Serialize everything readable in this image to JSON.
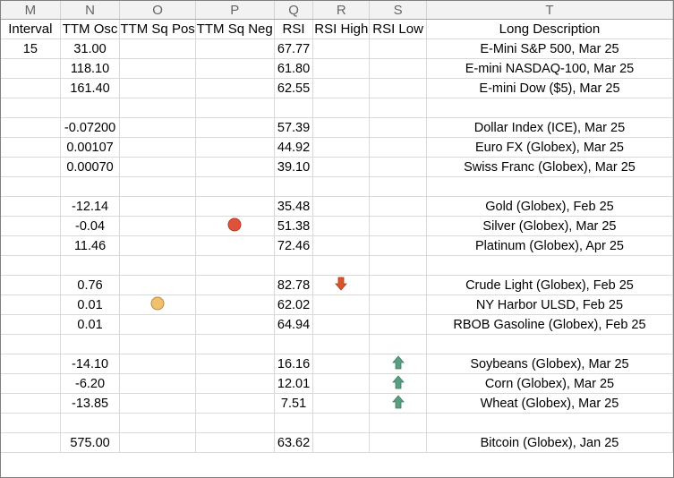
{
  "columns": [
    "M",
    "N",
    "O",
    "P",
    "Q",
    "R",
    "S",
    "T"
  ],
  "headers": [
    "Interval",
    "TTM Osc",
    "TTM Sq Pos",
    "TTM Sq Neg",
    "RSI",
    "RSI High",
    "RSI Low",
    "Long Description"
  ],
  "rows": [
    {
      "interval": "15",
      "ttm_osc": "31.00",
      "rsi": "67.77",
      "desc": "E-Mini S&P 500, Mar 25"
    },
    {
      "interval": "",
      "ttm_osc": "118.10",
      "rsi": "61.80",
      "desc": "E-mini NASDAQ-100, Mar 25"
    },
    {
      "interval": "",
      "ttm_osc": "161.40",
      "rsi": "62.55",
      "desc": "E-mini Dow ($5), Mar 25"
    },
    {
      "blank": true
    },
    {
      "interval": "",
      "ttm_osc": "-0.07200",
      "rsi": "57.39",
      "desc": "Dollar Index (ICE), Mar 25"
    },
    {
      "interval": "",
      "ttm_osc": "0.00107",
      "rsi": "44.92",
      "desc": "Euro FX (Globex), Mar 25"
    },
    {
      "interval": "",
      "ttm_osc": "0.00070",
      "rsi": "39.10",
      "desc": "Swiss Franc (Globex), Mar 25"
    },
    {
      "blank": true
    },
    {
      "interval": "",
      "ttm_osc": "-12.14",
      "rsi": "35.48",
      "desc": "Gold (Globex), Feb 25"
    },
    {
      "interval": "",
      "ttm_osc": "-0.04",
      "sq_neg": "red-circle-icon",
      "rsi": "51.38",
      "desc": "Silver (Globex), Mar 25"
    },
    {
      "interval": "",
      "ttm_osc": "11.46",
      "rsi": "72.46",
      "desc": "Platinum (Globex), Apr 25"
    },
    {
      "blank": true
    },
    {
      "interval": "",
      "ttm_osc": "0.76",
      "rsi": "82.78",
      "rsi_high": "red-down-arrow-icon",
      "desc": "Crude Light (Globex), Feb 25"
    },
    {
      "interval": "",
      "ttm_osc": "0.01",
      "sq_pos": "yellow-circle-icon",
      "rsi": "62.02",
      "desc": "NY Harbor ULSD, Feb 25"
    },
    {
      "interval": "",
      "ttm_osc": "0.01",
      "rsi": "64.94",
      "desc": "RBOB Gasoline (Globex), Feb 25"
    },
    {
      "blank": true
    },
    {
      "interval": "",
      "ttm_osc": "-14.10",
      "rsi": "16.16",
      "rsi_low": "green-up-arrow-icon",
      "desc": "Soybeans (Globex), Mar 25"
    },
    {
      "interval": "",
      "ttm_osc": "-6.20",
      "rsi": "12.01",
      "rsi_low": "green-up-arrow-icon",
      "desc": "Corn (Globex), Mar 25"
    },
    {
      "interval": "",
      "ttm_osc": "-13.85",
      "rsi": "7.51",
      "rsi_low": "green-up-arrow-icon",
      "desc": "Wheat (Globex), Mar 25"
    },
    {
      "blank": true
    },
    {
      "interval": "",
      "ttm_osc": "575.00",
      "rsi": "63.62",
      "desc": "Bitcoin (Globex), Jan 25"
    }
  ],
  "colors": {
    "red_circle": "#e0533a",
    "yellow_circle": "#f0c070",
    "red_arrow": "#d9532b",
    "green_arrow": "#5a9e82"
  }
}
